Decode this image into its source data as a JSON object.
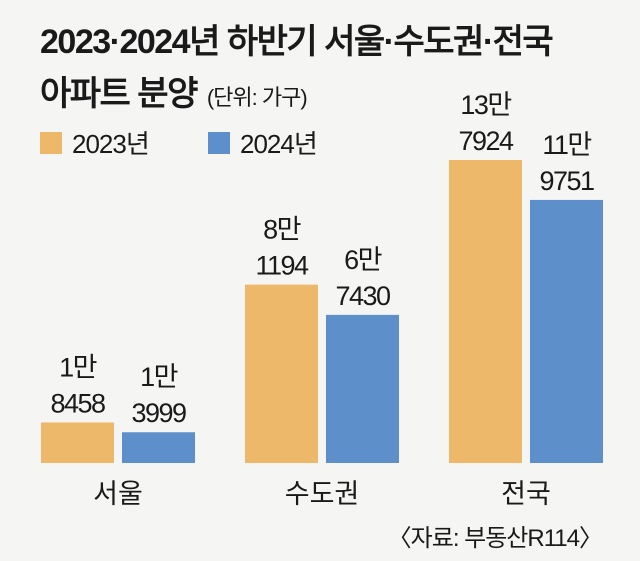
{
  "chart_data": {
    "type": "bar",
    "title": "2023·2024년 하반기 서울·수도권·전국",
    "title_line2": "아파트 분양",
    "unit": "(단위: 가구)",
    "categories": [
      "서울",
      "수도권",
      "전국"
    ],
    "series": [
      {
        "name": "2023년",
        "color": "#EEB86A",
        "values": [
          18458,
          81194,
          137924
        ],
        "labels": [
          [
            "1만",
            "8458"
          ],
          [
            "8만",
            "1194"
          ],
          [
            "13만",
            "7924"
          ]
        ]
      },
      {
        "name": "2024년",
        "color": "#5D8FCB",
        "values": [
          13999,
          67430,
          119751
        ],
        "labels": [
          [
            "1만",
            "3999"
          ],
          [
            "6만",
            "7430"
          ],
          [
            "11만",
            "9751"
          ]
        ]
      }
    ],
    "ylim": [
      0,
      137924
    ],
    "grid": false,
    "legend_placement": "top-left",
    "source": "〈자료: 부동산R114〉"
  }
}
